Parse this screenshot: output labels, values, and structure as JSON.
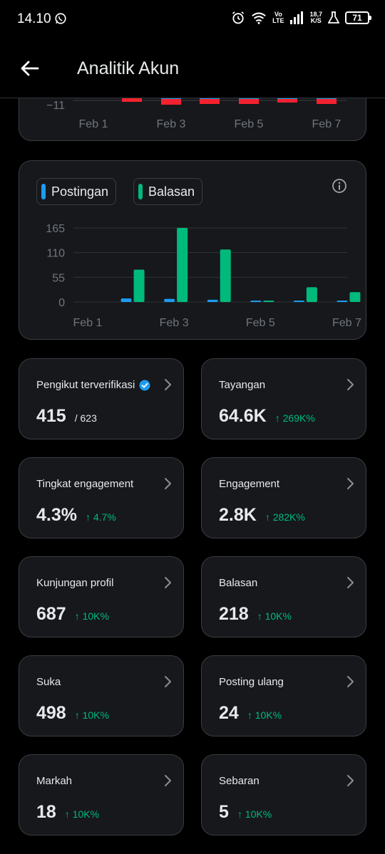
{
  "status_bar": {
    "time": "14.10",
    "network_type_top": "Vo",
    "network_type_bottom": "LTE",
    "speed_value": "18,7",
    "speed_unit": "K/S",
    "battery": "71"
  },
  "header": {
    "title": "Analitik Akun"
  },
  "colors": {
    "postingan": "#1d9bf0",
    "balasan": "#00ba7c",
    "negative": "#f4212e",
    "positive_change": "#00ba7c"
  },
  "top_chart": {
    "y_tick_label": "−11",
    "x_ticks": [
      "Feb 1",
      "Feb 3",
      "Feb 5",
      "Feb 7"
    ]
  },
  "chart_data": {
    "type": "bar",
    "legend": [
      "Postingan",
      "Balasan"
    ],
    "categories": [
      "Feb 1",
      "Feb 2",
      "Feb 3",
      "Feb 4",
      "Feb 5",
      "Feb 6",
      "Feb 7"
    ],
    "x_tick_labels": [
      "Feb 1",
      "Feb 3",
      "Feb 5",
      "Feb 7"
    ],
    "y_ticks": [
      0,
      55,
      110,
      165
    ],
    "ylim": [
      0,
      165
    ],
    "series": [
      {
        "name": "Postingan",
        "values": [
          0,
          8,
          7,
          5,
          1,
          1,
          1
        ]
      },
      {
        "name": "Balasan",
        "values": [
          0,
          72,
          165,
          117,
          1,
          33,
          22
        ]
      }
    ]
  },
  "stats": [
    {
      "label": "Pengikut terverifikasi",
      "value": "415",
      "sub": "/ 623",
      "change": "",
      "verified": true
    },
    {
      "label": "Tayangan",
      "value": "64.6K",
      "sub": "",
      "change": "↑ 269K%"
    },
    {
      "label": "Tingkat engagement",
      "value": "4.3%",
      "sub": "",
      "change": "↑ 4.7%"
    },
    {
      "label": "Engagement",
      "value": "2.8K",
      "sub": "",
      "change": "↑ 282K%"
    },
    {
      "label": "Kunjungan profil",
      "value": "687",
      "sub": "",
      "change": "↑ 10K%"
    },
    {
      "label": "Balasan",
      "value": "218",
      "sub": "",
      "change": "↑ 10K%"
    },
    {
      "label": "Suka",
      "value": "498",
      "sub": "",
      "change": "↑ 10K%"
    },
    {
      "label": "Posting ulang",
      "value": "24",
      "sub": "",
      "change": "↑ 10K%"
    },
    {
      "label": "Markah",
      "value": "18",
      "sub": "",
      "change": "↑ 10K%"
    },
    {
      "label": "Sebaran",
      "value": "5",
      "sub": "",
      "change": "↑ 10K%"
    }
  ]
}
